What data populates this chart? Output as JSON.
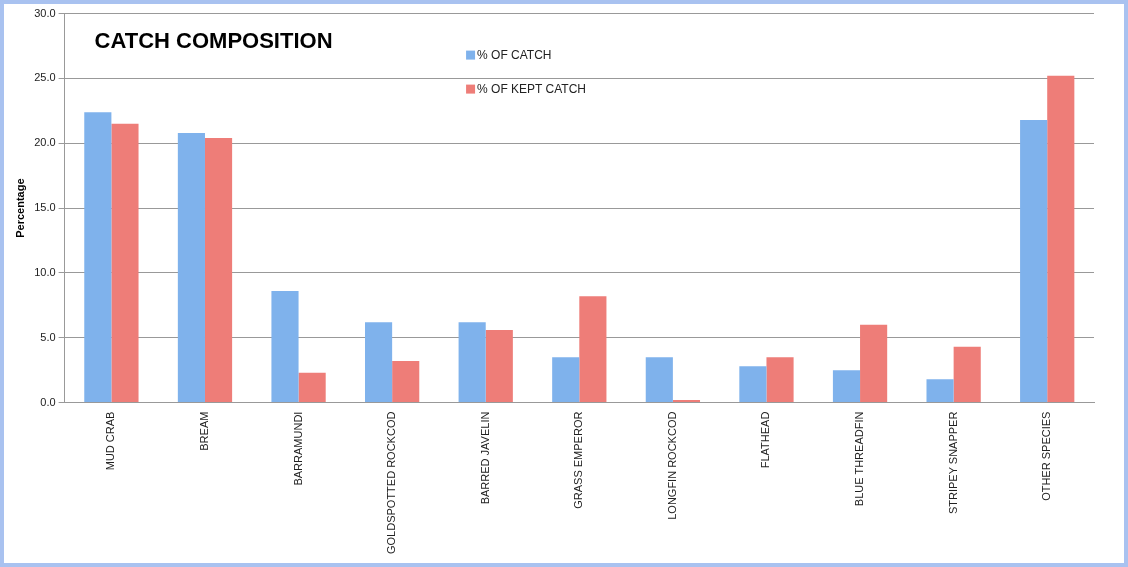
{
  "chart_data": {
    "type": "bar",
    "title": "CATCH COMPOSITION",
    "ylabel": "Percentage",
    "categories": [
      "MUD CRAB",
      "BREAM",
      "BARRAMUNDI",
      "GOLDSPOTTED ROCKCOD",
      "BARRED JAVELIN",
      "GRASS EMPEROR",
      "LONGFIN ROCKCOD",
      "FLATHEAD",
      "BLUE THREADFIN",
      "STRIPEY SNAPPER",
      "OTHER SPECIES"
    ],
    "series": [
      {
        "name": "% OF CATCH",
        "color": "#7fb2ec",
        "values": [
          22.4,
          20.8,
          8.6,
          6.2,
          6.2,
          3.5,
          3.5,
          2.8,
          2.5,
          1.8,
          21.8
        ]
      },
      {
        "name": "% OF KEPT CATCH",
        "color": "#ee7d78",
        "values": [
          21.5,
          20.4,
          2.3,
          3.2,
          5.6,
          8.2,
          0.2,
          3.5,
          6.0,
          4.3,
          25.2
        ]
      }
    ],
    "ylim": [
      0,
      30
    ],
    "yticks": [
      {
        "value": 0,
        "label": "0.0"
      },
      {
        "value": 5,
        "label": "5.0"
      },
      {
        "value": 10,
        "label": "10.0"
      },
      {
        "value": 15,
        "label": "15.0"
      },
      {
        "value": 20,
        "label": "20.0"
      },
      {
        "value": 25,
        "label": "25.0"
      },
      {
        "value": 30,
        "label": "30.0"
      }
    ],
    "grid": "y",
    "legend": "top"
  }
}
